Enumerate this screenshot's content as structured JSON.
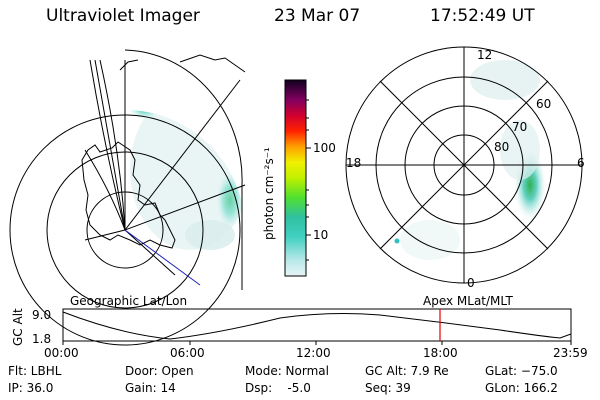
{
  "header": {
    "instrument": "Ultraviolet Imager",
    "date": "23 Mar 07",
    "time": "17:52:49 UT"
  },
  "colorbar": {
    "unit_label": "photon cm⁻²s⁻¹",
    "ticks": [
      "100",
      "10"
    ]
  },
  "polar_plot": {
    "labels": [
      "12",
      "18",
      "6",
      "0",
      "60",
      "70",
      "80"
    ]
  },
  "timeline": {
    "left_label": "Geographic Lat/Lon",
    "right_label": "Apex MLat/MLT",
    "yaxis_label": "GC Alt",
    "y_top": "9.0",
    "y_bottom": "1.8",
    "x_ticks": [
      "00:00",
      "06:00",
      "12:00",
      "18:00",
      "23:59"
    ],
    "marker_color": "#e00000"
  },
  "info": {
    "filter": "Flt: LBHL",
    "ip": "IP: 36.0",
    "door": "Door: Open",
    "gain": "Gain: 14",
    "mode": "Mode: Normal",
    "dsp": "Dsp:    -5.0",
    "gc_alt": "GC Alt: 7.9 Re",
    "seq": "Seq: 39",
    "glat": "GLat: −75.0",
    "glon": "GLon: 166.2"
  }
}
